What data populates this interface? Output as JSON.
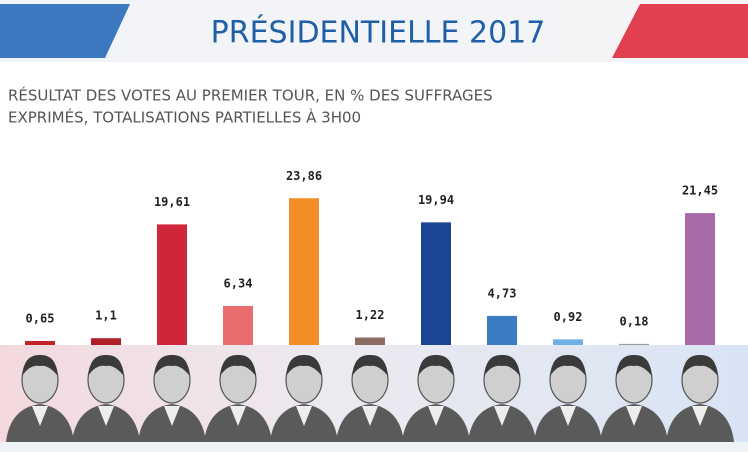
{
  "chart_data": {
    "type": "bar",
    "title": "PRÉSIDENTIELLE 2017",
    "subtitle": [
      "RÉSULTAT DES VOTES AU PREMIER TOUR, EN % DES SUFFRAGES",
      "EXPRIMÉS, TOTALISATIONS PARTIELLES À 3H00"
    ],
    "categories": [
      null,
      null,
      null,
      null,
      null,
      null,
      null,
      null,
      null,
      null,
      null
    ],
    "values": [
      0.65,
      1.1,
      19.61,
      6.34,
      23.86,
      1.22,
      19.94,
      4.73,
      0.92,
      0.18,
      21.45
    ],
    "value_labels": [
      "0,65",
      "1,1",
      "19,61",
      "6,34",
      "23,86",
      "1,22",
      "19,94",
      "4,73",
      "0,92",
      "0,18",
      "21,45"
    ],
    "colors": [
      "#c0232b",
      "#b01e28",
      "#d0263a",
      "#ea6d6d",
      "#f28e25",
      "#8c6b60",
      "#1c4594",
      "#3b7dc4",
      "#6fb0e6",
      "#9a9a9a",
      "#a86aa8"
    ]
  }
}
